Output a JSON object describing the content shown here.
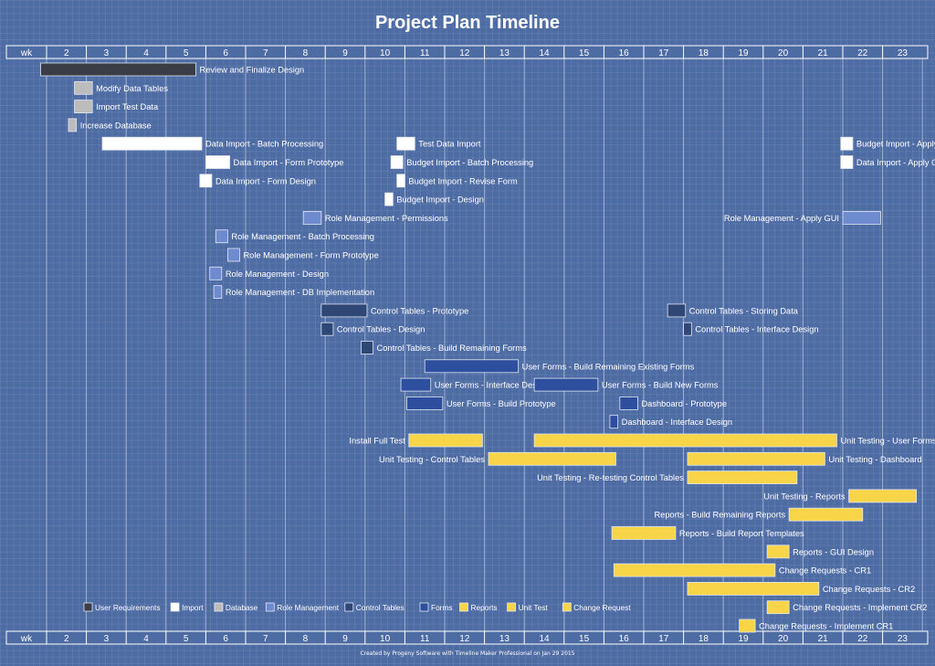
{
  "title": "Project Plan Timeline",
  "footer": "Created by Progeny Software with Timeline Maker Professional on Jan 29 2015",
  "chart_data": {
    "type": "gantt",
    "title": "Project Plan Timeline",
    "axis_header": "wk",
    "weeks": [
      "2",
      "3",
      "4",
      "5",
      "6",
      "7",
      "8",
      "9",
      "10",
      "11",
      "12",
      "13",
      "14",
      "15",
      "16",
      "17",
      "18",
      "19",
      "20",
      "21",
      "22",
      "23"
    ],
    "xlim": [
      1,
      23
    ],
    "grid": true,
    "legend_position": "bottom-left",
    "categories": [
      {
        "key": "user_requirements",
        "name": "User Requirements",
        "color": "#3a3d45"
      },
      {
        "key": "import",
        "name": "Import",
        "color": "#ffffff"
      },
      {
        "key": "database",
        "name": "Database",
        "color": "#bcbcbc"
      },
      {
        "key": "role_management",
        "name": "Role Management",
        "color": "#6e8bd0"
      },
      {
        "key": "control_tables",
        "name": "Control Tables",
        "color": "#2f4775"
      },
      {
        "key": "forms",
        "name": "Forms",
        "color": "#2e4f9e"
      },
      {
        "key": "reports",
        "name": "Reports",
        "color": "#f8d548"
      },
      {
        "key": "unit_test",
        "name": "Unit Test",
        "color": "#f8d548"
      },
      {
        "key": "change_request",
        "name": "Change Request",
        "color": "#f8d548"
      }
    ],
    "tasks": [
      {
        "label": "Review and Finalize Design",
        "category": "user_requirements",
        "start": 0.85,
        "end": 4.75,
        "row": 0,
        "label_side": "right"
      },
      {
        "label": "Modify Data Tables",
        "category": "database",
        "start": 1.7,
        "end": 2.15,
        "row": 1,
        "label_side": "right"
      },
      {
        "label": "Import Test Data",
        "category": "database",
        "start": 1.7,
        "end": 2.15,
        "row": 2,
        "label_side": "right"
      },
      {
        "label": "Increase Database",
        "category": "database",
        "start": 1.55,
        "end": 1.75,
        "row": 3,
        "label_side": "right"
      },
      {
        "label": "Data Import - Batch Processing",
        "category": "import",
        "start": 2.4,
        "end": 4.9,
        "row": 4,
        "label_side": "right"
      },
      {
        "label": "Test Data Import",
        "category": "import",
        "start": 9.8,
        "end": 10.25,
        "row": 4,
        "label_side": "right"
      },
      {
        "label": "Budget Import - Apply GUI",
        "category": "import",
        "start": 20.95,
        "end": 21.25,
        "row": 4,
        "label_side": "right"
      },
      {
        "label": "Data Import - Form Prototype",
        "category": "import",
        "start": 5.0,
        "end": 5.6,
        "row": 5,
        "label_side": "right"
      },
      {
        "label": "Budget Import - Batch Processing",
        "category": "import",
        "start": 9.65,
        "end": 9.95,
        "row": 5,
        "label_side": "right"
      },
      {
        "label": "Data Import - Apply GUI",
        "category": "import",
        "start": 20.95,
        "end": 21.25,
        "row": 5,
        "label_side": "right"
      },
      {
        "label": "Data Import - Form Design",
        "category": "import",
        "start": 4.85,
        "end": 5.15,
        "row": 6,
        "label_side": "right"
      },
      {
        "label": "Budget Import - Revise Form",
        "category": "import",
        "start": 9.8,
        "end": 10.0,
        "row": 6,
        "label_side": "right"
      },
      {
        "label": "Budget Import - Design",
        "category": "import",
        "start": 9.5,
        "end": 9.7,
        "row": 7,
        "label_side": "right"
      },
      {
        "label": "Role Management - Permissions",
        "category": "role_management",
        "start": 7.45,
        "end": 7.9,
        "row": 8,
        "label_side": "right"
      },
      {
        "label": "Role Management - Apply GUI",
        "category": "role_management",
        "start": 21.0,
        "end": 21.95,
        "row": 8,
        "label_side": "left"
      },
      {
        "label": "Role Management - Batch Processing",
        "category": "role_management",
        "start": 5.25,
        "end": 5.55,
        "row": 9,
        "label_side": "right"
      },
      {
        "label": "Role Management - Form Prototype",
        "category": "role_management",
        "start": 5.55,
        "end": 5.85,
        "row": 10,
        "label_side": "right"
      },
      {
        "label": "Role Management - Design",
        "category": "role_management",
        "start": 5.1,
        "end": 5.4,
        "row": 11,
        "label_side": "right"
      },
      {
        "label": "Role Management - DB Implementation",
        "category": "role_management",
        "start": 5.2,
        "end": 5.4,
        "row": 12,
        "label_side": "right"
      },
      {
        "label": "Control Tables - Prototype",
        "category": "control_tables",
        "start": 7.9,
        "end": 9.05,
        "row": 13,
        "label_side": "right"
      },
      {
        "label": "Control Tables - Storing Data",
        "category": "control_tables",
        "start": 16.6,
        "end": 17.05,
        "row": 13,
        "label_side": "right"
      },
      {
        "label": "Control Tables - Design",
        "category": "control_tables",
        "start": 7.9,
        "end": 8.2,
        "row": 14,
        "label_side": "right"
      },
      {
        "label": "Control Tables - Interface Design",
        "category": "control_tables",
        "start": 17.0,
        "end": 17.2,
        "row": 14,
        "label_side": "right"
      },
      {
        "label": "Control Tables - Build Remaining Forms",
        "category": "control_tables",
        "start": 8.9,
        "end": 9.2,
        "row": 15,
        "label_side": "right"
      },
      {
        "label": "User Forms - Build Remaining Existing Forms",
        "category": "forms",
        "start": 10.5,
        "end": 12.85,
        "row": 16,
        "label_side": "right"
      },
      {
        "label": "User Forms - Interface Design",
        "category": "forms",
        "start": 9.9,
        "end": 10.65,
        "row": 17,
        "label_side": "right"
      },
      {
        "label": "User Forms - Build New Forms",
        "category": "forms",
        "start": 13.25,
        "end": 14.85,
        "row": 17,
        "label_side": "right"
      },
      {
        "label": "User Forms - Build Prototype",
        "category": "forms",
        "start": 10.05,
        "end": 10.95,
        "row": 18,
        "label_side": "right"
      },
      {
        "label": "Dashboard - Prototype",
        "category": "forms",
        "start": 15.4,
        "end": 15.85,
        "row": 18,
        "label_side": "right"
      },
      {
        "label": "Dashboard - Interface Design",
        "category": "forms",
        "start": 15.15,
        "end": 15.35,
        "row": 19,
        "label_side": "right"
      },
      {
        "label": "Install Full Test",
        "category": "unit_test",
        "start": 10.1,
        "end": 11.95,
        "row": 20,
        "label_side": "left"
      },
      {
        "label": "Unit Testing - User Forms",
        "category": "unit_test",
        "start": 13.25,
        "end": 20.85,
        "row": 20,
        "label_side": "right"
      },
      {
        "label": "Unit Testing - Control Tables",
        "category": "unit_test",
        "start": 12.1,
        "end": 15.3,
        "row": 21,
        "label_side": "left"
      },
      {
        "label": "Unit Testing - Dashboard",
        "category": "unit_test",
        "start": 17.1,
        "end": 20.55,
        "row": 21,
        "label_side": "right"
      },
      {
        "label": "Unit Testing - Re-testing Control Tables",
        "category": "unit_test",
        "start": 17.1,
        "end": 19.85,
        "row": 22,
        "label_side": "left"
      },
      {
        "label": "Unit Testing - Reports",
        "category": "reports",
        "start": 21.15,
        "end": 22.85,
        "row": 23,
        "label_side": "left"
      },
      {
        "label": "Reports - Build Remaining Reports",
        "category": "reports",
        "start": 19.65,
        "end": 21.5,
        "row": 24,
        "label_side": "left"
      },
      {
        "label": "Reports - Build Report Templates",
        "category": "reports",
        "start": 15.2,
        "end": 16.8,
        "row": 25,
        "label_side": "right"
      },
      {
        "label": "Reports - GUI Design",
        "category": "reports",
        "start": 19.1,
        "end": 19.65,
        "row": 26,
        "label_side": "right"
      },
      {
        "label": "Change Requests - CR1",
        "category": "change_request",
        "start": 15.25,
        "end": 19.3,
        "row": 27,
        "label_side": "right"
      },
      {
        "label": "Change Requests - CR2",
        "category": "change_request",
        "start": 17.1,
        "end": 20.4,
        "row": 28,
        "label_side": "right"
      },
      {
        "label": "Change Requests - Implement CR2",
        "category": "change_request",
        "start": 19.1,
        "end": 19.65,
        "row": 29,
        "label_side": "right"
      },
      {
        "label": "Change Requests - Implement CR1",
        "category": "change_request",
        "start": 18.4,
        "end": 18.8,
        "row": 30,
        "label_side": "right"
      }
    ]
  }
}
